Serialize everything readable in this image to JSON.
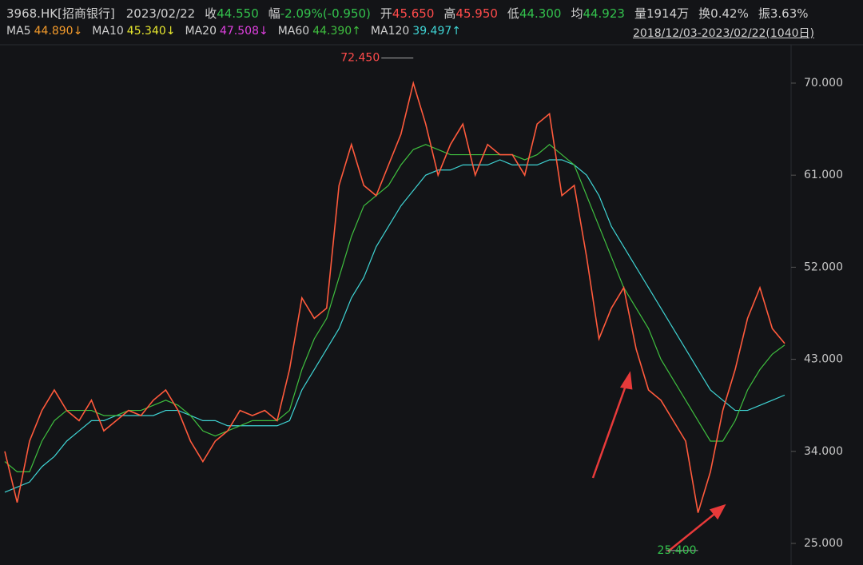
{
  "header": {
    "symbol": "3968.HK[招商银行]",
    "date": "2023/02/22",
    "fields": [
      {
        "label": "收",
        "value": "44.550",
        "tone": "green"
      },
      {
        "label": "幅",
        "value": "-2.09%(-0.950)",
        "tone": "green"
      },
      {
        "label": "开",
        "value": "45.650",
        "tone": "red"
      },
      {
        "label": "高",
        "value": "45.950",
        "tone": "red"
      },
      {
        "label": "低",
        "value": "44.300",
        "tone": "green"
      },
      {
        "label": "均",
        "value": "44.923",
        "tone": "green"
      },
      {
        "label": "量",
        "value": "1914万",
        "tone": "plain"
      },
      {
        "label": "换",
        "value": "0.42%",
        "tone": "plain"
      },
      {
        "label": "振",
        "value": "3.63%",
        "tone": "plain"
      }
    ],
    "ma": [
      {
        "label": "MA5",
        "value": "44.890↓",
        "color": "#f39a2b"
      },
      {
        "label": "MA10",
        "value": "45.340↓",
        "color": "#e6e62e"
      },
      {
        "label": "MA20",
        "value": "47.508↓",
        "color": "#e040e0"
      },
      {
        "label": "MA60",
        "value": "44.390↑",
        "color": "#3fbf3f"
      },
      {
        "label": "MA120",
        "value": "39.497↑",
        "color": "#3fd4d4"
      }
    ],
    "range": "2018/12/03-2023/02/22(1040日)"
  },
  "chart_data": {
    "type": "line",
    "categories": [
      null,
      null,
      null,
      null,
      null,
      null,
      null,
      null,
      null,
      null,
      null,
      null,
      null,
      null,
      null,
      null,
      null,
      null,
      null,
      null,
      null,
      null,
      null,
      null,
      null,
      null,
      null,
      null,
      null,
      null,
      null,
      null,
      null,
      null,
      null,
      null,
      null,
      null,
      null,
      null,
      null,
      null,
      null,
      null,
      null,
      null,
      null,
      null,
      null,
      null,
      null,
      null,
      null,
      null,
      null,
      null,
      null,
      null,
      null,
      null,
      null,
      null,
      null,
      null
    ],
    "series": [
      {
        "name": "MA120",
        "color": "#3fd4d4",
        "values": [
          30,
          30.5,
          31,
          32.5,
          33.5,
          35,
          36,
          37,
          37,
          37.5,
          37.5,
          37.5,
          37.5,
          38,
          38,
          37.5,
          37,
          37,
          36.5,
          36.5,
          36.5,
          36.5,
          36.5,
          37,
          40,
          42,
          44,
          46,
          49,
          51,
          54,
          56,
          58,
          59.5,
          61,
          61.5,
          61.5,
          62,
          62,
          62,
          62.5,
          62,
          62,
          62,
          62.5,
          62.5,
          62,
          61,
          59,
          56,
          54,
          52,
          50,
          48,
          46,
          44,
          42,
          40,
          39,
          38,
          38,
          38.5,
          39,
          39.5
        ]
      },
      {
        "name": "MA60",
        "color": "#3fbf3f",
        "values": [
          33,
          32,
          32,
          35,
          37,
          38,
          38,
          38,
          37.5,
          37.5,
          38,
          38,
          38.5,
          39,
          38.5,
          37.5,
          36,
          35.5,
          36,
          36.5,
          37,
          37,
          37,
          38,
          42,
          45,
          47,
          51,
          55,
          58,
          59,
          60,
          62,
          63.5,
          64,
          63.5,
          63,
          63,
          63,
          63,
          63,
          63,
          62.5,
          63,
          64,
          63,
          62,
          59,
          56,
          53,
          50,
          48,
          46,
          43,
          41,
          39,
          37,
          35,
          35,
          37,
          40,
          42,
          43.5,
          44.39
        ]
      },
      {
        "name": "收",
        "color": "#ff5a3c",
        "values": [
          34,
          29,
          35,
          38,
          40,
          38,
          37,
          39,
          36,
          37,
          38,
          37.5,
          39,
          40,
          38,
          35,
          33,
          35,
          36,
          38,
          37.5,
          38,
          37,
          42,
          49,
          47,
          48,
          60,
          64,
          60,
          59,
          62,
          65,
          70,
          66,
          61,
          64,
          66,
          61,
          64,
          63,
          63,
          61,
          66,
          67,
          59,
          60,
          53,
          45,
          48,
          50,
          44,
          40,
          39,
          37,
          35,
          28,
          32,
          38,
          42,
          47,
          50,
          46,
          44.55
        ]
      }
    ],
    "ylim": [
      23.67,
      73.28
    ],
    "yticks": [
      {
        "value": 25,
        "label": "25.000"
      },
      {
        "value": 34,
        "label": "34.000"
      },
      {
        "value": 43,
        "label": "43.000"
      },
      {
        "value": 52,
        "label": "52.000"
      },
      {
        "value": 61,
        "label": "61.000"
      },
      {
        "value": 70,
        "label": "70.000"
      }
    ],
    "grid": false,
    "annotations": [
      {
        "value": 72.45,
        "label": "72.450",
        "color": "#ff4b4b"
      },
      {
        "value": 25.4,
        "label": "25.400",
        "color": "#33c24d"
      }
    ]
  }
}
